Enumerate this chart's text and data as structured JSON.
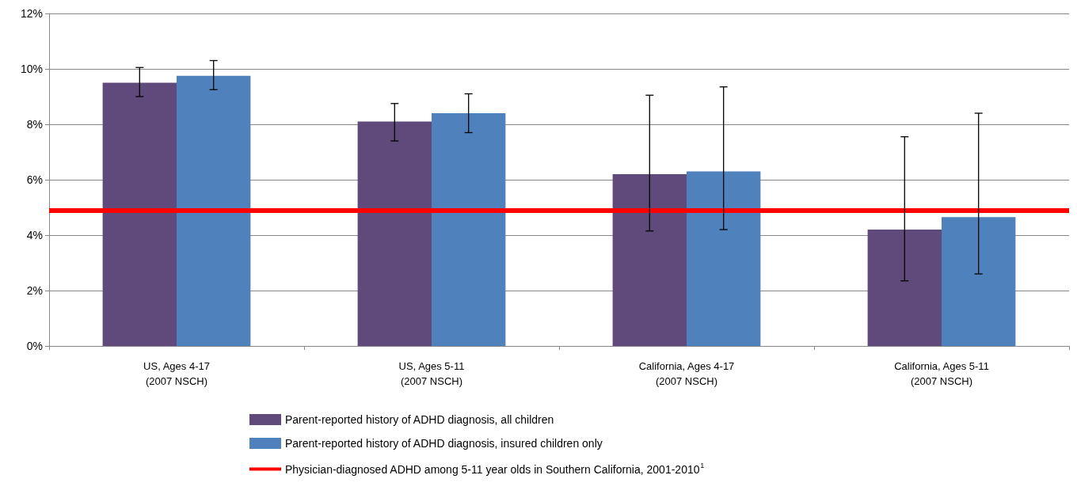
{
  "chart_data": {
    "type": "bar",
    "categories": [
      "US, Ages 4-17\n(2007 NSCH)",
      "US, Ages 5-11\n(2007 NSCH)",
      "California, Ages 4-17\n(2007 NSCH)",
      "California, Ages 5-11\n(2007 NSCH)"
    ],
    "series": [
      {
        "name": "Parent-reported history of ADHD diagnosis, all children",
        "color": "#604a7b",
        "values": [
          9.5,
          8.1,
          6.2,
          4.2
        ],
        "errors": [
          [
            9.0,
            10.05
          ],
          [
            7.4,
            8.75
          ],
          [
            4.15,
            9.05
          ],
          [
            2.35,
            7.55
          ]
        ]
      },
      {
        "name": "Parent-reported history of ADHD diagnosis, insured children only",
        "color": "#4f81bd",
        "values": [
          9.75,
          8.4,
          6.3,
          4.65
        ],
        "errors": [
          [
            9.25,
            10.3
          ],
          [
            7.7,
            9.1
          ],
          [
            4.2,
            9.35
          ],
          [
            2.6,
            8.4
          ]
        ]
      }
    ],
    "ref_lines": [
      {
        "axis": "y",
        "value": 4.9,
        "label": "Physician-diagnosed ADHD among 5-11 year olds in Southern California, 2001-2010$^{1}$",
        "color": "#ff0000"
      }
    ],
    "ylim": [
      0,
      12
    ],
    "yticks": [
      {
        "value": 0,
        "label": "0%"
      },
      {
        "value": 2,
        "label": "2%"
      },
      {
        "value": 4,
        "label": "4%"
      },
      {
        "value": 6,
        "label": "6%"
      },
      {
        "value": 8,
        "label": "8%"
      },
      {
        "value": 10,
        "label": "10%"
      },
      {
        "value": 12,
        "label": "12%"
      }
    ],
    "grid": "y",
    "legend": "bottom"
  }
}
